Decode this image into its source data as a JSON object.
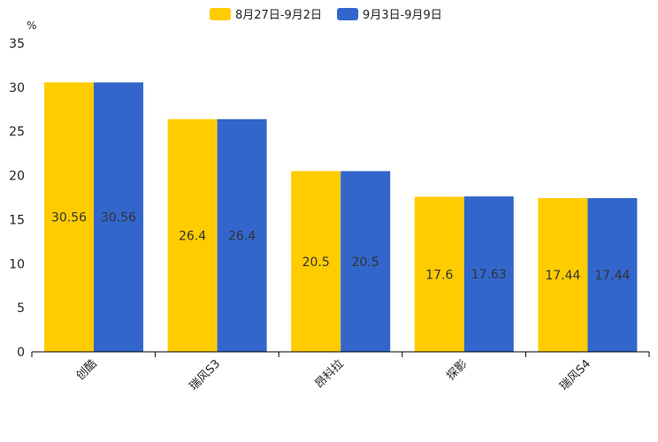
{
  "chart_data": {
    "type": "bar",
    "unit_label": "%",
    "categories": [
      "创酷",
      "瑞风S3",
      "昂科拉",
      "探影",
      "瑞风S4"
    ],
    "series": [
      {
        "name": "8月27日-9月2日",
        "color": "#FFCC00",
        "values": [
          30.56,
          26.4,
          20.5,
          17.6,
          17.44
        ]
      },
      {
        "name": "9月3日-9月9日",
        "color": "#3366CC",
        "values": [
          30.56,
          26.4,
          20.5,
          17.63,
          17.44
        ]
      }
    ],
    "ylim": [
      0,
      35
    ],
    "yticks": [
      0,
      5,
      10,
      15,
      20,
      25,
      30,
      35
    ],
    "legend": "top-center",
    "grid": false
  }
}
